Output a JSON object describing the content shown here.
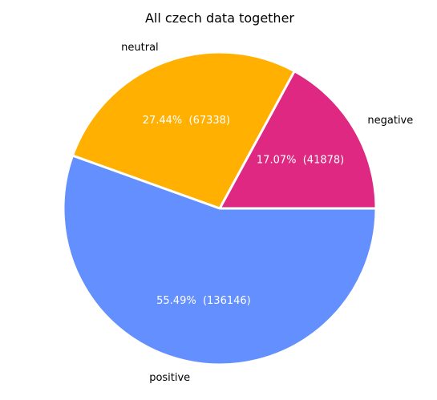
{
  "chart_data": {
    "type": "pie",
    "title": "All czech data together",
    "categories": [
      "negative",
      "neutral",
      "positive"
    ],
    "values": [
      41878,
      67338,
      136146
    ],
    "percent_labels": [
      "17.07%  (41878)",
      "27.44%  (67338)",
      "55.49%  (136146)"
    ],
    "colors": [
      "#de2882",
      "#ffb000",
      "#648fff"
    ],
    "edge_color": "#ffffff",
    "start_angle_deg": 0,
    "direction": "counterclockwise"
  }
}
